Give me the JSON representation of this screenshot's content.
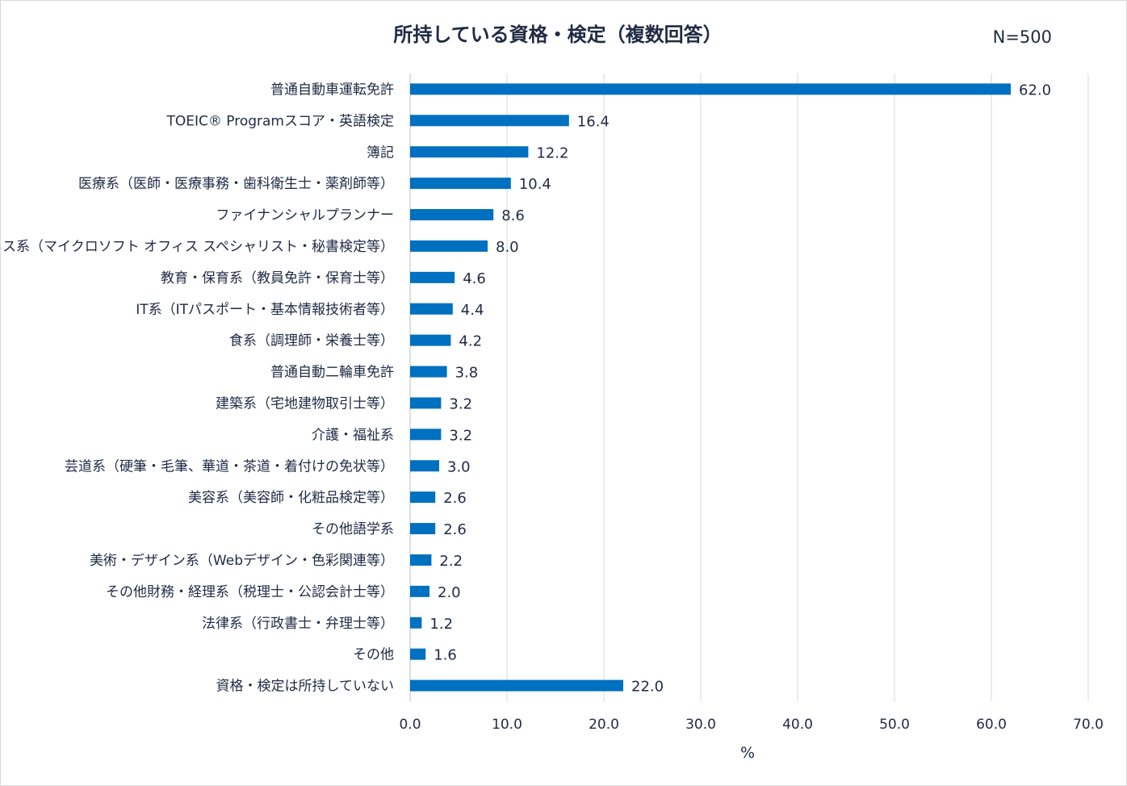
{
  "chart_data": {
    "type": "bar",
    "orientation": "horizontal",
    "title": "所持している資格・検定（複数回答）",
    "note": "N=500",
    "xlabel": "%",
    "ylabel": "",
    "xlim": [
      0,
      70
    ],
    "xticks": [
      "0.0",
      "10.0",
      "20.0",
      "30.0",
      "40.0",
      "50.0",
      "60.0",
      "70.0"
    ],
    "grid": "vertical",
    "bar_color": "#0070c0",
    "categories": [
      "普通自動車運転免許",
      "TOEIC® Programスコア・英語検定",
      "簿記",
      "医療系（医師・医療事務・歯科衛生士・薬剤師等）",
      "ファイナンシャルプランナー",
      "ビジネス系（マイクロソフト オフィス スペシャリスト・秘書検定等）",
      "教育・保育系（教員免許・保育士等）",
      "IT系（ITパスポート・基本情報技術者等）",
      "食系（調理師・栄養士等）",
      "普通自動二輪車免許",
      "建築系（宅地建物取引士等）",
      "介護・福祉系",
      "芸道系（硬筆・毛筆、華道・茶道・着付けの免状等）",
      "美容系（美容師・化粧品検定等）",
      "その他語学系",
      "美術・デザイン系（Webデザイン・色彩関連等）",
      "その他財務・経理系（税理士・公認会計士等）",
      "法律系（行政書士・弁理士等）",
      "その他",
      "資格・検定は所持していない"
    ],
    "values": [
      62.0,
      16.4,
      12.2,
      10.4,
      8.6,
      8.0,
      4.6,
      4.4,
      4.2,
      3.8,
      3.2,
      3.2,
      3.0,
      2.6,
      2.6,
      2.2,
      2.0,
      1.2,
      1.6,
      22.0
    ],
    "value_labels": [
      "62.0",
      "16.4",
      "12.2",
      "10.4",
      "8.6",
      "8.0",
      "4.6",
      "4.4",
      "4.2",
      "3.8",
      "3.2",
      "3.2",
      "3.0",
      "2.6",
      "2.6",
      "2.2",
      "2.0",
      "1.2",
      "1.6",
      "22.0"
    ]
  }
}
